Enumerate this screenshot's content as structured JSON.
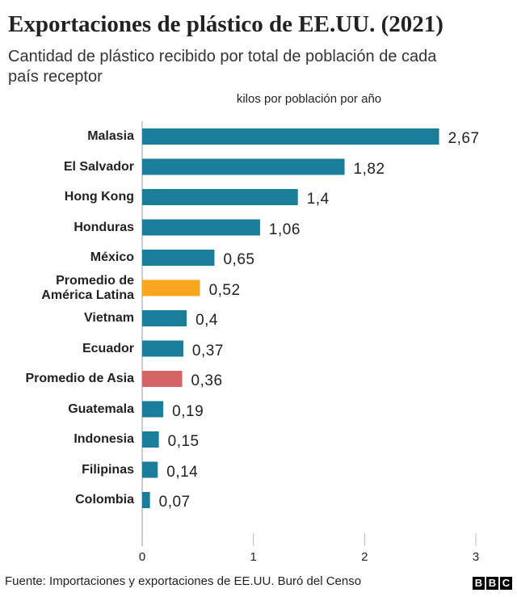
{
  "chart_data": {
    "type": "bar",
    "orientation": "horizontal",
    "title": "Exportaciones de plástico de EE.UU. (2021)",
    "subtitle": "Cantidad de plástico recibido por total de población de cada país receptor",
    "x_label": "kilos por población por año",
    "categories": [
      "Malasia",
      "El Salvador",
      "Hong Kong",
      "Honduras",
      "México",
      "Promedio de América Latina",
      "Vietnam",
      "Ecuador",
      "Promedio de Asia",
      "Guatemala",
      "Indonesia",
      "Filipinas",
      "Colombia"
    ],
    "values": [
      2.67,
      1.82,
      1.4,
      1.06,
      0.65,
      0.52,
      0.4,
      0.37,
      0.36,
      0.19,
      0.15,
      0.14,
      0.07
    ],
    "value_labels": [
      "2,67",
      "1,82",
      "1,4",
      "1,06",
      "0,65",
      "0,52",
      "0,4",
      "0,37",
      "0,36",
      "0,19",
      "0,15",
      "0,14",
      "0,07"
    ],
    "colors": [
      "#1a7d99",
      "#1a7d99",
      "#1a7d99",
      "#1a7d99",
      "#1a7d99",
      "#f8a620",
      "#1a7d99",
      "#1a7d99",
      "#d46466",
      "#1a7d99",
      "#1a7d99",
      "#1a7d99",
      "#1a7d99"
    ],
    "xlim": [
      0,
      3
    ],
    "xticks": [
      0,
      1,
      2,
      3
    ],
    "source": "Fuente: Importaciones y exportaciones de EE.UU. Buró del Censo",
    "logo": [
      "B",
      "B",
      "C"
    ]
  }
}
